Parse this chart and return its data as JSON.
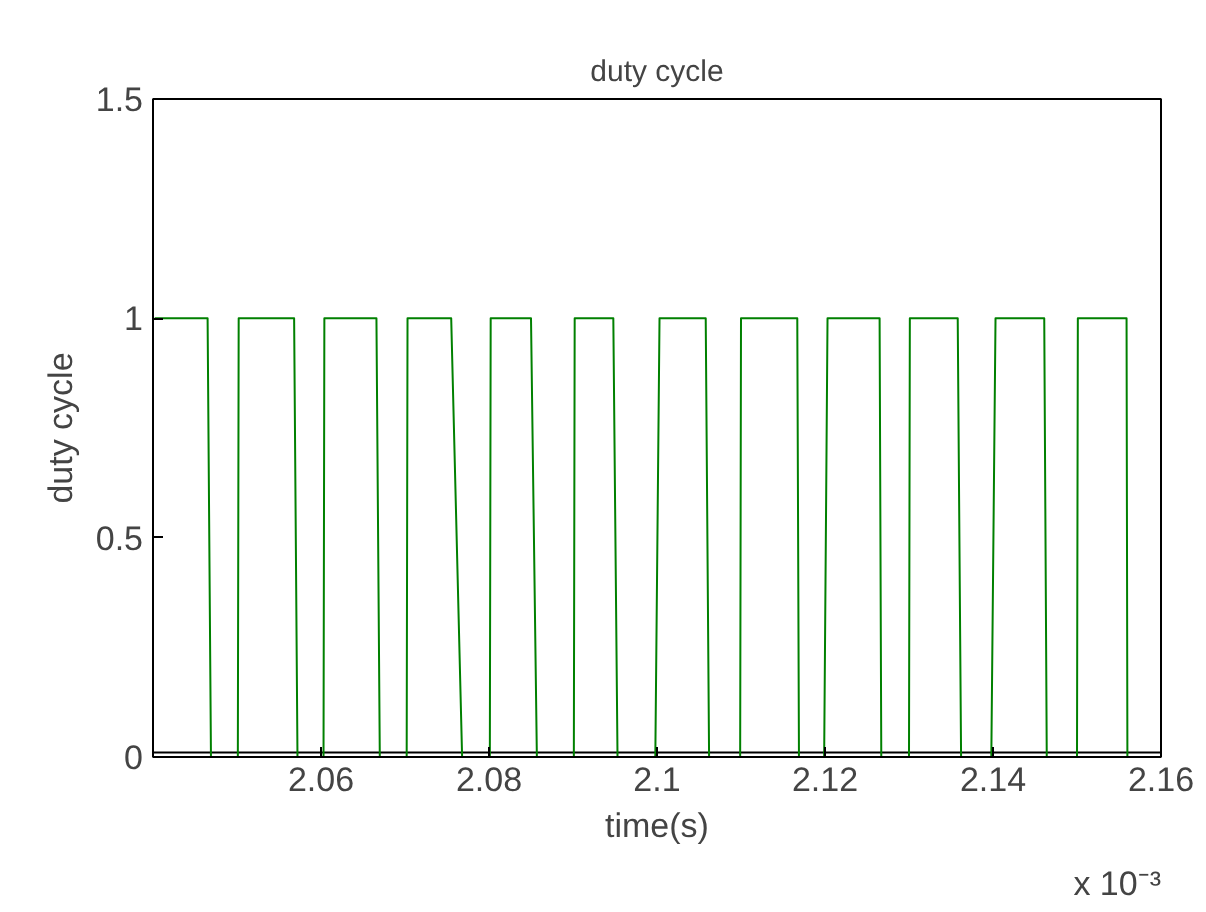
{
  "chart_data": {
    "type": "line",
    "title": "duty cycle",
    "xlabel": "time(s)",
    "ylabel": "duty cycle",
    "annotations": [
      "x 10⁻³"
    ],
    "xlim": [
      2.04,
      2.16
    ],
    "xticks": [
      2.06,
      2.08,
      2.1,
      2.12,
      2.14,
      2.16
    ],
    "ylim": [
      0,
      1.5
    ],
    "yticks": [
      0,
      0.5,
      1,
      1.5
    ],
    "grid": false,
    "line_style": "solid",
    "marker": "none",
    "series": [
      {
        "color": "#000000",
        "x": [
          2.0401,
          2.16
        ],
        "values": [
          0.01,
          0.01
        ]
      },
      {
        "color": "#008000",
        "x": [
          2.0402,
          2.0465,
          2.0469,
          2.0501,
          2.0502,
          2.0568,
          2.0572,
          2.0603,
          2.0604,
          2.0666,
          2.067,
          2.0702,
          2.0703,
          2.0755,
          2.0768,
          2.0801,
          2.0802,
          2.085,
          2.0857,
          2.0901,
          2.0902,
          2.0948,
          2.0953,
          2.0998,
          2.1003,
          2.1058,
          2.1062,
          2.1099,
          2.11,
          2.1167,
          2.1169,
          2.1199,
          2.1203,
          2.1265,
          2.1267,
          2.13,
          2.1301,
          2.1358,
          2.1362,
          2.1398,
          2.1403,
          2.1461,
          2.1464,
          2.15,
          2.1501,
          2.1559,
          2.156,
          2.16
        ],
        "values": [
          1,
          1,
          0,
          0,
          1,
          1,
          0,
          0,
          1,
          1,
          0,
          0,
          1,
          1,
          0,
          0,
          1,
          1,
          0,
          0,
          1,
          1,
          0,
          0,
          1,
          1,
          0,
          0,
          1,
          1,
          0,
          0,
          1,
          1,
          0,
          0,
          1,
          1,
          0,
          0,
          1,
          1,
          0,
          0,
          1,
          1,
          0,
          0
        ]
      }
    ]
  }
}
